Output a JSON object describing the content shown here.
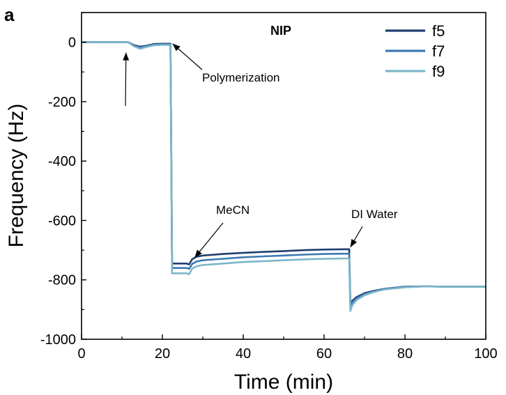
{
  "chart_data": {
    "type": "line",
    "panel_label": "a",
    "title": "NIP",
    "xlabel": "Time (min)",
    "ylabel": "Frequency (Hz)",
    "xlim": [
      0,
      100
    ],
    "ylim": [
      -1000,
      100
    ],
    "xticks": [
      0,
      20,
      40,
      60,
      80,
      100
    ],
    "yticks": [
      0,
      -200,
      -400,
      -600,
      -800,
      -1000
    ],
    "grid": false,
    "legend_position": "top-right",
    "series": [
      {
        "name": "f5",
        "color": "#1f3d6e",
        "x": [
          0,
          10,
          11.5,
          13,
          14.5,
          16,
          18,
          20,
          21.5,
          22,
          22.4,
          23,
          24,
          25,
          26,
          26.6,
          27.4,
          28.5,
          30,
          35,
          40,
          45,
          50,
          55,
          60,
          65,
          66.2,
          66.5,
          67,
          68,
          70,
          72,
          75,
          80,
          85,
          90,
          95,
          100
        ],
        "y": [
          0,
          0,
          0,
          -10,
          -15,
          -12,
          -6,
          -5,
          -5,
          -5,
          -745,
          -745,
          -745,
          -745,
          -745,
          -748,
          -730,
          -722,
          -718,
          -713,
          -709,
          -706,
          -703,
          -700,
          -698,
          -697,
          -697,
          -880,
          -870,
          -858,
          -845,
          -838,
          -830,
          -823,
          -822,
          -823,
          -823,
          -823
        ]
      },
      {
        "name": "f7",
        "color": "#3d78b3",
        "x": [
          0,
          10,
          11.5,
          13,
          14.5,
          16,
          18,
          20,
          21.5,
          22,
          22.4,
          23,
          24,
          25,
          26,
          26.6,
          27.4,
          28.5,
          30,
          35,
          40,
          45,
          50,
          55,
          60,
          65,
          66.2,
          66.5,
          67,
          68,
          70,
          72,
          75,
          80,
          85,
          90,
          95,
          100
        ],
        "y": [
          0,
          0,
          0,
          -12,
          -18,
          -14,
          -8,
          -7,
          -7,
          -7,
          -760,
          -760,
          -760,
          -760,
          -760,
          -763,
          -746,
          -738,
          -734,
          -729,
          -724,
          -721,
          -718,
          -715,
          -713,
          -712,
          -712,
          -890,
          -875,
          -862,
          -848,
          -840,
          -831,
          -824,
          -822,
          -823,
          -823,
          -823
        ]
      },
      {
        "name": "f9",
        "color": "#7cb6c9",
        "x": [
          0,
          10,
          11.5,
          13,
          14.5,
          16,
          18,
          20,
          21.5,
          22,
          22.4,
          23,
          24,
          25,
          26,
          26.6,
          27.4,
          28.5,
          30,
          35,
          40,
          45,
          50,
          55,
          60,
          65,
          66.2,
          66.5,
          67,
          68,
          70,
          72,
          75,
          80,
          85,
          90,
          95,
          100
        ],
        "y": [
          0,
          0,
          0,
          -14,
          -22,
          -16,
          -10,
          -9,
          -9,
          -9,
          -778,
          -778,
          -778,
          -778,
          -778,
          -781,
          -762,
          -754,
          -750,
          -745,
          -740,
          -737,
          -734,
          -731,
          -729,
          -728,
          -728,
          -905,
          -885,
          -868,
          -852,
          -842,
          -832,
          -825,
          -822,
          -823,
          -823,
          -823
        ]
      }
    ],
    "annotations": [
      {
        "text": "Polymerization",
        "arrow_tip": [
          22.5,
          -5
        ]
      },
      {
        "text": "MeCN",
        "arrow_tip": [
          28,
          -725
        ]
      },
      {
        "text": "DI Water",
        "arrow_tip": [
          66.5,
          -690
        ]
      },
      {
        "text": "",
        "arrow_tip": [
          11,
          -35
        ]
      }
    ]
  }
}
